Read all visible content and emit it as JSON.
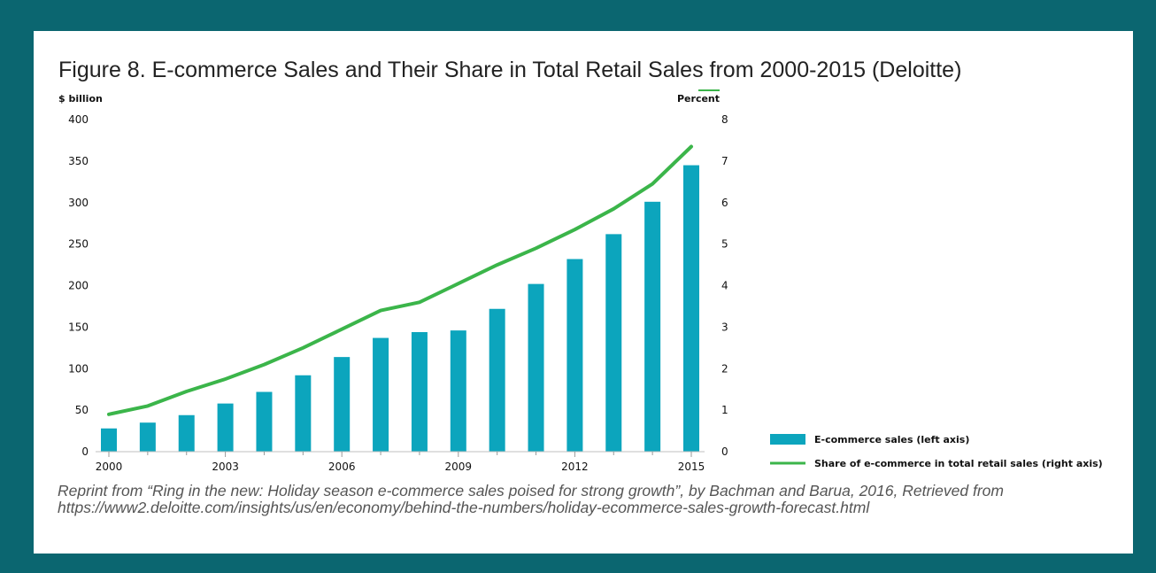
{
  "figure": {
    "title": "Figure 8. E-commerce Sales and Their Share in Total Retail Sales from 2000-2015 (Deloitte)",
    "caption": "Reprint from “Ring in the new: Holiday season e-commerce sales poised for strong growth”, by Bachman and Barua, 2016, Retrieved from https://www2.deloitte.com/insights/us/en/economy/behind-the-numbers/holiday-ecommerce-sales-growth-forecast.html"
  },
  "colors": {
    "page_bg": "#0b6670",
    "bar": "#0ca5bd",
    "line": "#3bb54a"
  },
  "chart_data": {
    "type": "bar",
    "left_axis_unit": "$ billion",
    "right_axis_unit": "Percent",
    "left_ylim": [
      0,
      400
    ],
    "right_ylim": [
      0,
      8
    ],
    "left_ticks": [
      0,
      50,
      100,
      150,
      200,
      250,
      300,
      350,
      400
    ],
    "right_ticks": [
      0,
      1,
      2,
      3,
      4,
      5,
      6,
      7,
      8
    ],
    "x_tick_labels": [
      "2000",
      "2003",
      "2006",
      "2009",
      "2012",
      "2015"
    ],
    "x": [
      2000,
      2001,
      2002,
      2003,
      2004,
      2005,
      2006,
      2007,
      2008,
      2009,
      2010,
      2011,
      2012,
      2013,
      2014,
      2015
    ],
    "series": [
      {
        "name": "E-commerce sales (left axis)",
        "type": "bar",
        "axis": "left",
        "values": [
          28,
          35,
          44,
          58,
          72,
          92,
          114,
          137,
          144,
          146,
          172,
          202,
          232,
          262,
          301,
          345
        ]
      },
      {
        "name": "Share of e-commerce in total retail sales (right axis)",
        "type": "line",
        "axis": "right",
        "values": [
          0.9,
          1.1,
          1.45,
          1.75,
          2.1,
          2.5,
          2.95,
          3.4,
          3.6,
          4.05,
          4.5,
          4.9,
          5.35,
          5.85,
          6.45,
          7.35
        ]
      }
    ],
    "grid": false,
    "legend_position": "bottom-right"
  }
}
